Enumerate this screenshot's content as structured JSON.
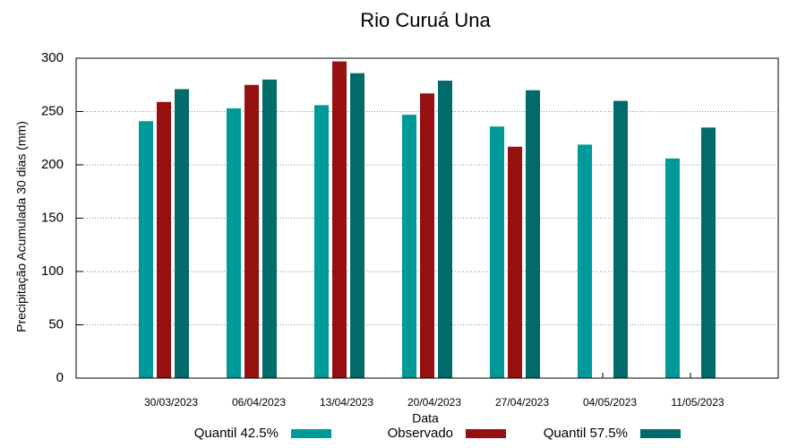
{
  "chart_data": {
    "type": "bar",
    "title": "Rio Curuá Una",
    "x_label": "Data",
    "y_label": "Precipitação Acumulada 30 dias (mm)",
    "categories": [
      "30/03/2023",
      "06/04/2023",
      "13/04/2023",
      "20/04/2023",
      "27/04/2023",
      "04/05/2023",
      "11/05/2023"
    ],
    "series": [
      {
        "name": "Quantil 42.5%",
        "color": "#009999",
        "values": [
          241,
          253,
          256,
          247,
          236,
          219,
          206
        ]
      },
      {
        "name": "Observado",
        "color": "#961010",
        "values": [
          259,
          275,
          297,
          267,
          217,
          null,
          null
        ]
      },
      {
        "name": "Quantil 57.5%",
        "color": "#006b68",
        "values": [
          271,
          280,
          286,
          279,
          270,
          260,
          235
        ]
      }
    ],
    "ylim": [
      0,
      300
    ],
    "yticks": [
      0,
      50,
      100,
      150,
      200,
      250,
      300
    ],
    "grid": true
  }
}
